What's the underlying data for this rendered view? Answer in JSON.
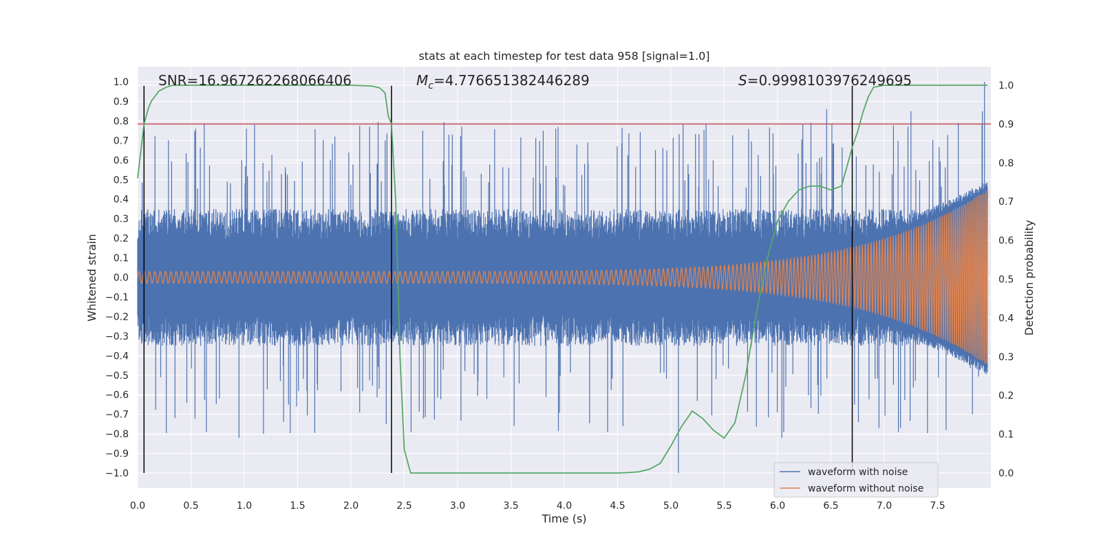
{
  "chart_data": {
    "type": "line",
    "title": "stats at each timestep for test data 958 [signal=1.0]",
    "xlabel": "Time (s)",
    "ylabel": "Whitened strain",
    "y2label": "Detection probability",
    "xlim": [
      0.0,
      8.0
    ],
    "ylim": [
      -1.1,
      1.1
    ],
    "y2lim": [
      -0.05,
      1.03
    ],
    "x_ticks": [
      "0.0",
      "0.5",
      "1.0",
      "1.5",
      "2.0",
      "2.5",
      "3.0",
      "3.5",
      "4.0",
      "4.5",
      "5.0",
      "5.5",
      "6.0",
      "6.5",
      "7.0",
      "7.5"
    ],
    "y_ticks": [
      "1.0",
      "0.9",
      "0.8",
      "0.7",
      "0.6",
      "0.5",
      "0.4",
      "0.3",
      "0.2",
      "0.1",
      "0.0",
      "−0.1",
      "−0.2",
      "−0.3",
      "−0.4",
      "−0.5",
      "−0.6",
      "−0.7",
      "−0.8",
      "−0.9",
      "−1.0"
    ],
    "y2_ticks": [
      "1.0",
      "0.9",
      "0.8",
      "0.7",
      "0.6",
      "0.5",
      "0.4",
      "0.3",
      "0.2",
      "0.1",
      "0.0"
    ],
    "grid": true,
    "legend_position": "lower right",
    "annotations": {
      "snr": "SNR=16.967262268066406",
      "mc": "4.776651382446289",
      "mc_prefix": "M",
      "mc_sub": "c",
      "s_prefix": "S",
      "s_value": "=0.9998103976249695"
    },
    "threshold_probability": 0.9,
    "vertical_markers": [
      0.06,
      2.38,
      6.7
    ],
    "series": [
      {
        "name": "waveform with noise",
        "color": "#4c72b0",
        "envelope": {
          "typical": 0.35,
          "peak": 0.85
        }
      },
      {
        "name": "waveform without noise",
        "color": "#dd8452",
        "amplitude_start": 0.03,
        "amplitude_end": 0.45
      },
      {
        "name": "",
        "color": "#55a868",
        "x": [
          0.0,
          0.03,
          0.06,
          0.1,
          0.13,
          0.2,
          0.27,
          0.33,
          0.4,
          0.5,
          0.7,
          1.0,
          1.5,
          2.0,
          2.2,
          2.27,
          2.32,
          2.35,
          2.38,
          2.42,
          2.46,
          2.5,
          2.56,
          3.0,
          3.5,
          4.0,
          4.5,
          4.6,
          4.7,
          4.8,
          4.9,
          5.0,
          5.1,
          5.2,
          5.3,
          5.4,
          5.5,
          5.6,
          5.7,
          5.8,
          5.9,
          6.0,
          6.1,
          6.2,
          6.3,
          6.4,
          6.5,
          6.6,
          6.7,
          6.75,
          6.8,
          6.85,
          6.9,
          7.0,
          7.5,
          7.97
        ],
        "values": [
          0.76,
          0.83,
          0.9,
          0.94,
          0.96,
          0.985,
          0.995,
          1.0,
          1.0,
          1.0,
          1.0,
          1.0,
          1.0,
          1.0,
          0.998,
          0.993,
          0.98,
          0.92,
          0.9,
          0.7,
          0.3,
          0.06,
          0.0,
          0.0,
          0.0,
          0.0,
          0.0,
          0.001,
          0.003,
          0.01,
          0.025,
          0.07,
          0.12,
          0.16,
          0.14,
          0.11,
          0.09,
          0.13,
          0.25,
          0.41,
          0.55,
          0.65,
          0.7,
          0.73,
          0.74,
          0.74,
          0.73,
          0.74,
          0.84,
          0.88,
          0.93,
          0.97,
          0.995,
          1.0,
          1.0,
          1.0
        ]
      }
    ],
    "threshold_color": "#c44e52",
    "marker_color": "#000000"
  }
}
